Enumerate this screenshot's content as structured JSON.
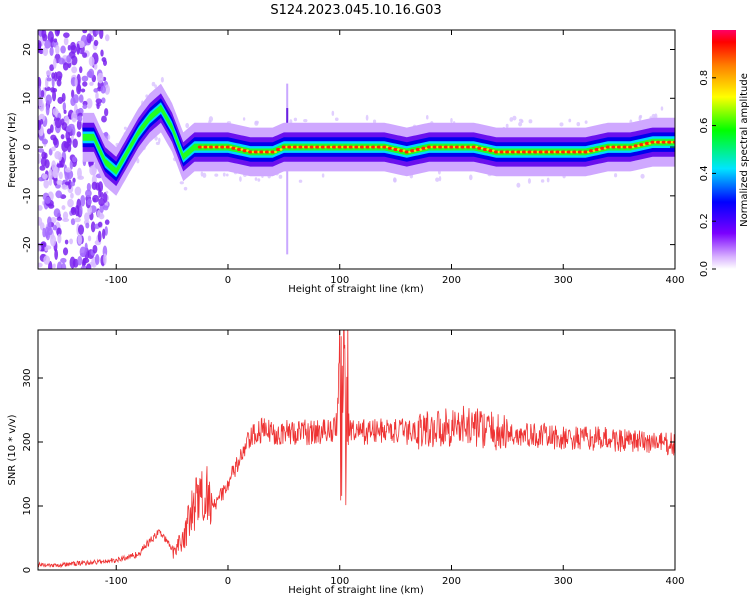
{
  "title": "S124.2023.045.10.16.G03",
  "chart_data": [
    {
      "type": "heatmap",
      "title": "",
      "xlabel": "Height of straight line (km)",
      "ylabel": "Frequency (Hz)",
      "xlim": [
        -170,
        400
      ],
      "ylim": [
        -25,
        24
      ],
      "x_ticks": [
        -100,
        0,
        100,
        200,
        300,
        400
      ],
      "y_ticks": [
        -20,
        -10,
        0,
        10,
        20
      ],
      "colorbar": {
        "label": "Normalized spectral amplitude",
        "range": [
          0.0,
          1.0
        ],
        "ticks": [
          0.0,
          0.2,
          0.4,
          0.6,
          0.8
        ],
        "tick_labels": [
          "0.0",
          "0.2",
          "0.4",
          "0.6",
          "0.8"
        ]
      },
      "ridge_frequency": {
        "x": [
          -120,
          -110,
          -100,
          -90,
          -80,
          -70,
          -60,
          -50,
          -40,
          -30,
          -20,
          0,
          20,
          40,
          50,
          60,
          80,
          100,
          120,
          140,
          160,
          180,
          200,
          220,
          240,
          260,
          280,
          300,
          320,
          340,
          360,
          380,
          400
        ],
        "y": [
          2,
          -3,
          -5,
          -1,
          3,
          6,
          8,
          4,
          -2,
          0,
          0,
          0,
          -1,
          -1,
          0,
          0,
          0,
          0,
          0,
          0,
          -1,
          0,
          0,
          0,
          -1,
          -1,
          -1,
          -1,
          -1,
          0,
          0,
          1,
          1
        ]
      }
    },
    {
      "type": "line",
      "title": "",
      "xlabel": "Height of straight line (km)",
      "ylabel": "SNR (10 * v/v)",
      "xlim": [
        -170,
        400
      ],
      "ylim": [
        0,
        375
      ],
      "x_ticks": [
        -100,
        0,
        100,
        200,
        300,
        400
      ],
      "y_ticks": [
        0,
        100,
        200,
        300
      ],
      "color": "#ee3333",
      "envelope": {
        "x": [
          -170,
          -150,
          -120,
          -100,
          -80,
          -70,
          -60,
          -50,
          -40,
          -30,
          -20,
          -10,
          0,
          10,
          20,
          30,
          40,
          60,
          80,
          95,
          100,
          103,
          106,
          110,
          120,
          140,
          160,
          180,
          200,
          220,
          240,
          260,
          280,
          300,
          320,
          340,
          360,
          380,
          400
        ],
        "y": [
          8,
          8,
          12,
          15,
          25,
          45,
          60,
          30,
          50,
          100,
          120,
          105,
          135,
          170,
          205,
          218,
          215,
          215,
          215,
          220,
          240,
          300,
          250,
          215,
          215,
          218,
          215,
          220,
          225,
          225,
          215,
          210,
          210,
          205,
          205,
          205,
          200,
          200,
          195
        ]
      }
    }
  ]
}
